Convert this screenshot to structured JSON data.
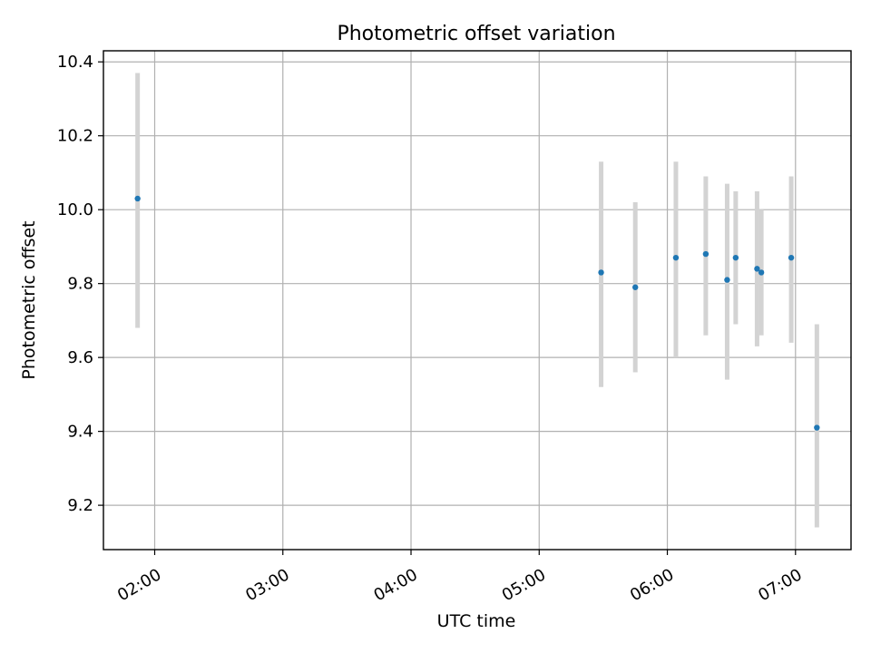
{
  "chart_data": {
    "type": "scatter",
    "title": "Photometric offset variation",
    "xlabel": "UTC time",
    "ylabel": "Photometric offset",
    "x_unit": "UTC time of day (HH:MM)",
    "xlim": [
      "01:36",
      "07:26"
    ],
    "ylim": [
      9.08,
      10.43
    ],
    "xticks": [
      "02:00",
      "03:00",
      "04:00",
      "05:00",
      "06:00",
      "07:00"
    ],
    "yticks": [
      9.2,
      9.4,
      9.6,
      9.8,
      10.0,
      10.2,
      10.4
    ],
    "ytick_labels": [
      "9.2",
      "9.4",
      "9.6",
      "9.8",
      "10.0",
      "10.2",
      "10.4"
    ],
    "grid": true,
    "point_color": "#1f77b4",
    "errorbar_color": "#d3d3d3",
    "points": [
      {
        "x": "01:52",
        "y": 10.03,
        "ylow": 9.68,
        "yhigh": 10.37
      },
      {
        "x": "05:29",
        "y": 9.83,
        "ylow": 9.52,
        "yhigh": 10.13
      },
      {
        "x": "05:45",
        "y": 9.79,
        "ylow": 9.56,
        "yhigh": 10.02
      },
      {
        "x": "06:04",
        "y": 9.87,
        "ylow": 9.6,
        "yhigh": 10.13
      },
      {
        "x": "06:18",
        "y": 9.88,
        "ylow": 9.66,
        "yhigh": 10.09
      },
      {
        "x": "06:28",
        "y": 9.81,
        "ylow": 9.54,
        "yhigh": 10.07
      },
      {
        "x": "06:32",
        "y": 9.87,
        "ylow": 9.69,
        "yhigh": 10.05
      },
      {
        "x": "06:42",
        "y": 9.84,
        "ylow": 9.63,
        "yhigh": 10.05
      },
      {
        "x": "06:44",
        "y": 9.83,
        "ylow": 9.66,
        "yhigh": 10.0
      },
      {
        "x": "06:58",
        "y": 9.87,
        "ylow": 9.64,
        "yhigh": 10.09
      },
      {
        "x": "07:10",
        "y": 9.41,
        "ylow": 9.14,
        "yhigh": 9.69
      }
    ]
  }
}
